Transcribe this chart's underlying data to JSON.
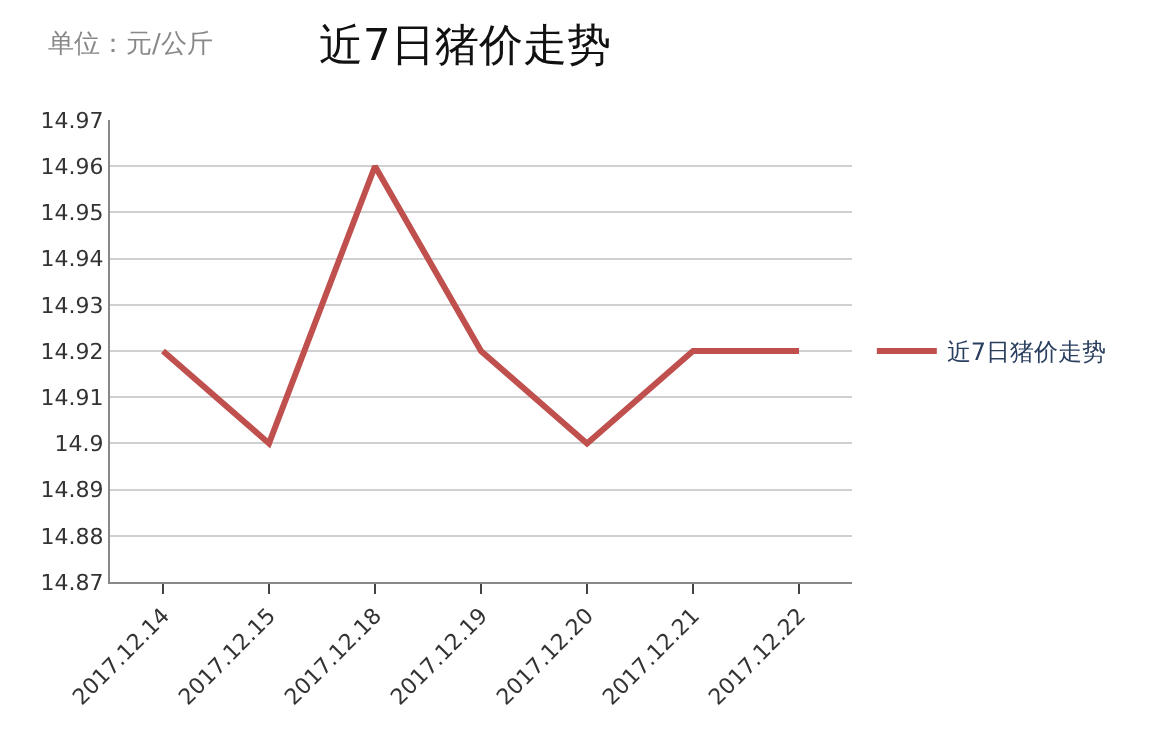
{
  "chart_data": {
    "type": "line",
    "title": "近7日猪价走势",
    "annotations": [
      "单位：元/公斤"
    ],
    "categories": [
      "2017.12.14",
      "2017.12.15",
      "2017.12.18",
      "2017.12.19",
      "2017.12.20",
      "2017.12.21",
      "2017.12.22"
    ],
    "series": [
      {
        "name": "近7日猪价走势",
        "color": "#c0504d",
        "values": [
          14.92,
          14.9,
          14.96,
          14.92,
          14.9,
          14.92,
          14.92
        ]
      }
    ],
    "ylim": [
      14.87,
      14.97
    ],
    "yticks": [
      14.87,
      14.88,
      14.89,
      14.9,
      14.91,
      14.92,
      14.93,
      14.94,
      14.95,
      14.96,
      14.97
    ],
    "grid": "y",
    "legend": "right",
    "marker": "none",
    "line_style": "solid"
  }
}
